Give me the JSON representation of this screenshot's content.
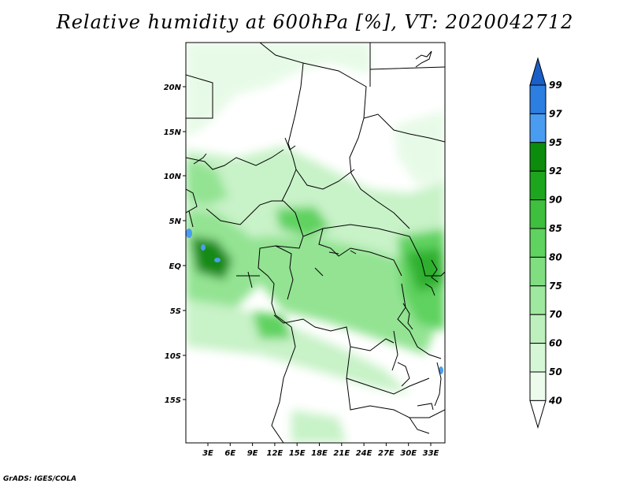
{
  "title": "Relative humidity at 600hPa [%], VT: 2020042712",
  "credit": "GrADS: IGES/COLA",
  "map": {
    "lat_labels": [
      "20N",
      "15N",
      "10N",
      "5N",
      "EQ",
      "5S",
      "10S",
      "15S"
    ],
    "lon_labels": [
      "3E",
      "6E",
      "9E",
      "12E",
      "15E",
      "18E",
      "21E",
      "24E",
      "27E",
      "30E",
      "33E"
    ]
  },
  "colorbar": {
    "levels": [
      "99",
      "97",
      "95",
      "92",
      "90",
      "85",
      "80",
      "75",
      "70",
      "60",
      "50",
      "40"
    ],
    "colors": [
      "#1a5fc8",
      "#2c7ee0",
      "#4a9cf0",
      "#0c8c0c",
      "#1ea51e",
      "#3ebf3e",
      "#5fd25f",
      "#80de80",
      "#9fe89f",
      "#bdf0bd",
      "#d6f7d6",
      "#ecfbec"
    ]
  },
  "colors": {
    "light": "#e7fae7",
    "pale": "#c8f2c8",
    "mid": "#93e393",
    "green": "#5fd25f",
    "deep": "#2fb02f",
    "darkest": "#128a12",
    "blue": "#4a9cf0"
  }
}
